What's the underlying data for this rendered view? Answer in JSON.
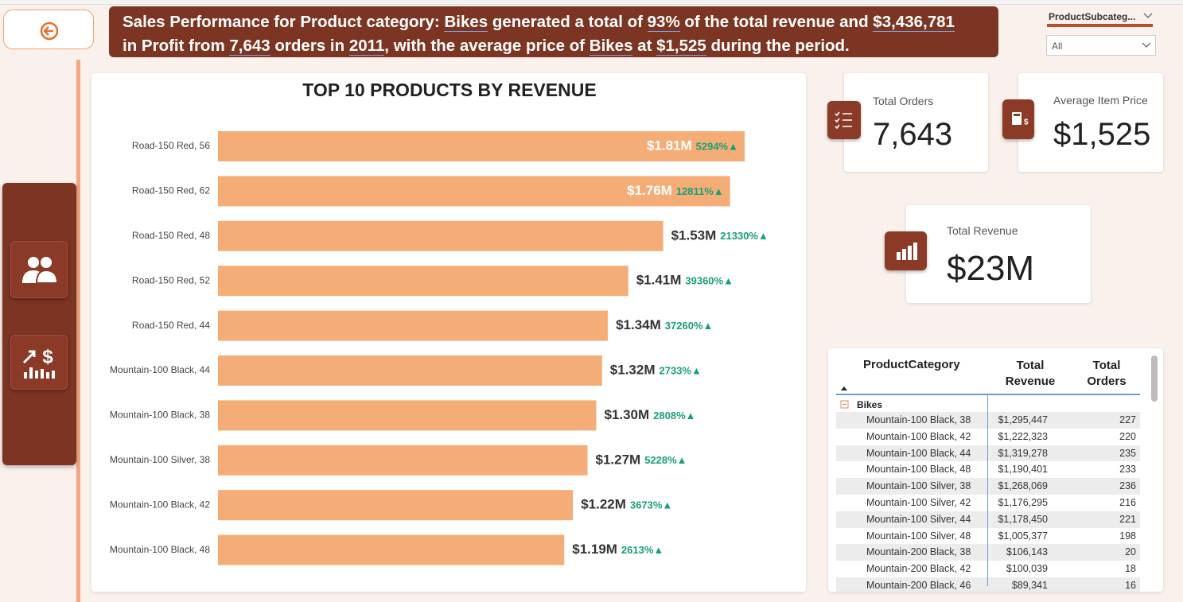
{
  "header": {
    "lines": [
      [
        "Sales Performance for Product category: ",
        "Bikes",
        " generated a total of ",
        "93%",
        " of the total revenue and ",
        "$3,436,781"
      ],
      [
        "in Profit from ",
        "7,643",
        " orders in ",
        "2011",
        ", with the average price of ",
        "Bikes",
        " at ",
        "$1,525",
        " during the period."
      ]
    ]
  },
  "slicer": {
    "title": "ProductSubcateg...",
    "value": "All"
  },
  "kpis": [
    {
      "label": "Total Orders",
      "value": "7,643"
    },
    {
      "label": "Average Item Price",
      "value": "$1,525"
    },
    {
      "label": "Total Revenue",
      "value": "$23M"
    }
  ],
  "chart_data": {
    "type": "bar",
    "orientation": "horizontal",
    "title": "TOP 10 PRODUCTS BY REVENUE",
    "categories": [
      "Road-150 Red, 56",
      "Road-150 Red, 62",
      "Road-150 Red, 48",
      "Road-150 Red, 52",
      "Road-150 Red, 44",
      "Mountain-100 Black, 44",
      "Mountain-100 Black, 38",
      "Mountain-100 Silver, 38",
      "Mountain-100 Black, 42",
      "Mountain-100 Black, 48"
    ],
    "values": [
      1.81,
      1.76,
      1.53,
      1.41,
      1.34,
      1.32,
      1.3,
      1.27,
      1.22,
      1.19
    ],
    "value_labels": [
      "$1.81M",
      "$1.76M",
      "$1.53M",
      "$1.41M",
      "$1.34M",
      "$1.32M",
      "$1.30M",
      "$1.27M",
      "$1.22M",
      "$1.19M"
    ],
    "change_labels": [
      "5294%▲",
      "12811%▲",
      "21330%▲",
      "39360%▲",
      "37260%▲",
      "2733%▲",
      "2808%▲",
      "5228%▲",
      "3673%▲",
      "2613%▲"
    ],
    "color": "#f5ad78"
  },
  "table": {
    "columns": [
      "ProductCategory",
      "Total Revenue",
      "Total Orders"
    ],
    "group": "Bikes",
    "rows": [
      [
        "Mountain-100 Black, 38",
        "$1,295,447",
        "227"
      ],
      [
        "Mountain-100 Black, 42",
        "$1,222,323",
        "220"
      ],
      [
        "Mountain-100 Black, 44",
        "$1,319,278",
        "235"
      ],
      [
        "Mountain-100 Black, 48",
        "$1,190,401",
        "233"
      ],
      [
        "Mountain-100 Silver, 38",
        "$1,268,069",
        "236"
      ],
      [
        "Mountain-100 Silver, 42",
        "$1,176,295",
        "216"
      ],
      [
        "Mountain-100 Silver, 44",
        "$1,178,450",
        "221"
      ],
      [
        "Mountain-100 Silver, 48",
        "$1,005,377",
        "198"
      ],
      [
        "Mountain-200 Black, 38",
        "$106,143",
        "20"
      ],
      [
        "Mountain-200 Black, 42",
        "$100,039",
        "18"
      ],
      [
        "Mountain-200 Black, 46",
        "$89,341",
        "16"
      ]
    ]
  }
}
